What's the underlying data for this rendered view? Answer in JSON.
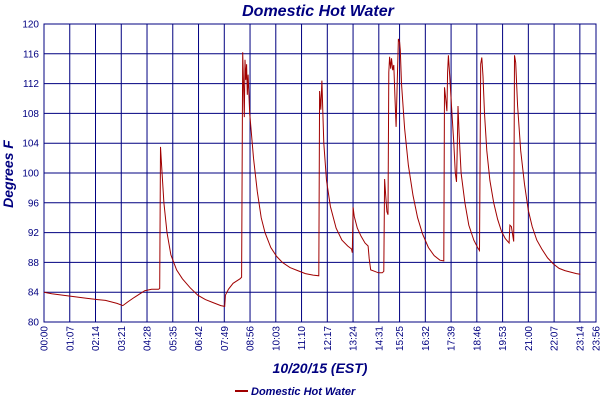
{
  "chart_data": {
    "type": "line",
    "title": "Domestic Hot Water",
    "xlabel": "10/20/15 (EST)",
    "ylabel": "Degrees F",
    "ylim": [
      80,
      120
    ],
    "yticks": [
      80,
      84,
      88,
      92,
      96,
      100,
      104,
      108,
      112,
      116,
      120
    ],
    "xlim": [
      0,
      1436
    ],
    "x_ticks": [
      {
        "label": "00:00",
        "t": 0
      },
      {
        "label": "01:07",
        "t": 67
      },
      {
        "label": "02:14",
        "t": 134
      },
      {
        "label": "03:21",
        "t": 201
      },
      {
        "label": "04:28",
        "t": 268
      },
      {
        "label": "05:35",
        "t": 335
      },
      {
        "label": "06:42",
        "t": 402
      },
      {
        "label": "07:49",
        "t": 469
      },
      {
        "label": "08:56",
        "t": 536
      },
      {
        "label": "10:03",
        "t": 603
      },
      {
        "label": "11:10",
        "t": 670
      },
      {
        "label": "12:17",
        "t": 737
      },
      {
        "label": "13:24",
        "t": 804
      },
      {
        "label": "14:31",
        "t": 871
      },
      {
        "label": "15:25",
        "t": 925
      },
      {
        "label": "16:32",
        "t": 992
      },
      {
        "label": "17:39",
        "t": 1059
      },
      {
        "label": "18:46",
        "t": 1126
      },
      {
        "label": "19:53",
        "t": 1193
      },
      {
        "label": "21:00",
        "t": 1260
      },
      {
        "label": "22:07",
        "t": 1327
      },
      {
        "label": "23:14",
        "t": 1394
      },
      {
        "label": "23:56",
        "t": 1436
      }
    ],
    "grid": true,
    "legend": "bottom-center",
    "series": [
      {
        "name": "Domestic Hot Water",
        "color": "#a00000",
        "points": [
          [
            0,
            84.0
          ],
          [
            20,
            83.8
          ],
          [
            50,
            83.6
          ],
          [
            80,
            83.4
          ],
          [
            110,
            83.2
          ],
          [
            140,
            83.0
          ],
          [
            160,
            82.9
          ],
          [
            190,
            82.5
          ],
          [
            205,
            82.2
          ],
          [
            218,
            82.7
          ],
          [
            235,
            83.3
          ],
          [
            250,
            83.8
          ],
          [
            262,
            84.2
          ],
          [
            280,
            84.4
          ],
          [
            298,
            84.4
          ],
          [
            301,
            84.5
          ],
          [
            303,
            103.5
          ],
          [
            306,
            101.0
          ],
          [
            312,
            96.0
          ],
          [
            320,
            92.0
          ],
          [
            330,
            89.0
          ],
          [
            345,
            87.0
          ],
          [
            360,
            85.8
          ],
          [
            380,
            84.6
          ],
          [
            400,
            83.6
          ],
          [
            420,
            83.0
          ],
          [
            440,
            82.6
          ],
          [
            460,
            82.2
          ],
          [
            470,
            82.1
          ],
          [
            472,
            83.6
          ],
          [
            480,
            84.4
          ],
          [
            492,
            85.2
          ],
          [
            504,
            85.6
          ],
          [
            510,
            85.8
          ],
          [
            514,
            86.0
          ],
          [
            517,
            116.2
          ],
          [
            519,
            112.0
          ],
          [
            521,
            107.5
          ],
          [
            523,
            115.2
          ],
          [
            525,
            112.5
          ],
          [
            527,
            114.6
          ],
          [
            529,
            110.5
          ],
          [
            531,
            113.2
          ],
          [
            535,
            108.0
          ],
          [
            545,
            102.0
          ],
          [
            555,
            97.5
          ],
          [
            565,
            94.0
          ],
          [
            575,
            92.0
          ],
          [
            590,
            90.0
          ],
          [
            605,
            88.8
          ],
          [
            620,
            88.0
          ],
          [
            640,
            87.3
          ],
          [
            660,
            86.9
          ],
          [
            680,
            86.5
          ],
          [
            700,
            86.3
          ],
          [
            715,
            86.2
          ],
          [
            717,
            111.0
          ],
          [
            720,
            108.5
          ],
          [
            723,
            112.4
          ],
          [
            726,
            107.0
          ],
          [
            728,
            104.0
          ],
          [
            735,
            99.0
          ],
          [
            745,
            95.5
          ],
          [
            760,
            92.6
          ],
          [
            775,
            91.0
          ],
          [
            790,
            90.2
          ],
          [
            800,
            89.8
          ],
          [
            802,
            89.3
          ],
          [
            804,
            95.4
          ],
          [
            807,
            94.2
          ],
          [
            815,
            92.6
          ],
          [
            825,
            91.5
          ],
          [
            835,
            90.6
          ],
          [
            843,
            90.2
          ],
          [
            846,
            88.5
          ],
          [
            850,
            87.0
          ],
          [
            860,
            86.8
          ],
          [
            870,
            86.6
          ],
          [
            880,
            86.6
          ],
          [
            884,
            86.8
          ],
          [
            886,
            99.2
          ],
          [
            889,
            97.0
          ],
          [
            892,
            94.8
          ],
          [
            895,
            94.4
          ],
          [
            897,
            113.5
          ],
          [
            899,
            115.6
          ],
          [
            902,
            114.0
          ],
          [
            904,
            115.4
          ],
          [
            907,
            113.8
          ],
          [
            910,
            114.5
          ],
          [
            913,
            110.0
          ],
          [
            916,
            106.2
          ],
          [
            919,
            112.5
          ],
          [
            922,
            118.0
          ],
          [
            925,
            117.6
          ],
          [
            927,
            116.5
          ],
          [
            930,
            112.0
          ],
          [
            938,
            106.0
          ],
          [
            948,
            101.0
          ],
          [
            960,
            97.0
          ],
          [
            972,
            94.0
          ],
          [
            985,
            91.8
          ],
          [
            1000,
            90.0
          ],
          [
            1015,
            88.9
          ],
          [
            1030,
            88.3
          ],
          [
            1040,
            88.2
          ],
          [
            1042,
            111.5
          ],
          [
            1045,
            110.0
          ],
          [
            1048,
            108.3
          ],
          [
            1050,
            113.5
          ],
          [
            1052,
            115.8
          ],
          [
            1055,
            113.5
          ],
          [
            1060,
            109.0
          ],
          [
            1066,
            104.0
          ],
          [
            1070,
            100.0
          ],
          [
            1073,
            98.8
          ],
          [
            1075,
            103.0
          ],
          [
            1077,
            109.0
          ],
          [
            1080,
            105.0
          ],
          [
            1085,
            100.0
          ],
          [
            1095,
            96.0
          ],
          [
            1105,
            93.0
          ],
          [
            1118,
            91.0
          ],
          [
            1128,
            90.0
          ],
          [
            1133,
            89.6
          ],
          [
            1136,
            114.6
          ],
          [
            1139,
            115.5
          ],
          [
            1142,
            113.0
          ],
          [
            1146,
            108.0
          ],
          [
            1152,
            103.0
          ],
          [
            1160,
            99.0
          ],
          [
            1170,
            96.0
          ],
          [
            1180,
            93.8
          ],
          [
            1190,
            92.2
          ],
          [
            1200,
            91.2
          ],
          [
            1210,
            90.6
          ],
          [
            1212,
            93.0
          ],
          [
            1216,
            92.8
          ],
          [
            1220,
            91.4
          ],
          [
            1222,
            90.8
          ],
          [
            1224,
            115.8
          ],
          [
            1227,
            114.8
          ],
          [
            1232,
            109.0
          ],
          [
            1240,
            103.0
          ],
          [
            1250,
            98.5
          ],
          [
            1260,
            95.0
          ],
          [
            1270,
            92.8
          ],
          [
            1282,
            91.0
          ],
          [
            1295,
            89.8
          ],
          [
            1310,
            88.6
          ],
          [
            1325,
            87.8
          ],
          [
            1340,
            87.2
          ],
          [
            1355,
            86.9
          ],
          [
            1370,
            86.7
          ],
          [
            1385,
            86.5
          ],
          [
            1395,
            86.4
          ]
        ]
      }
    ]
  }
}
